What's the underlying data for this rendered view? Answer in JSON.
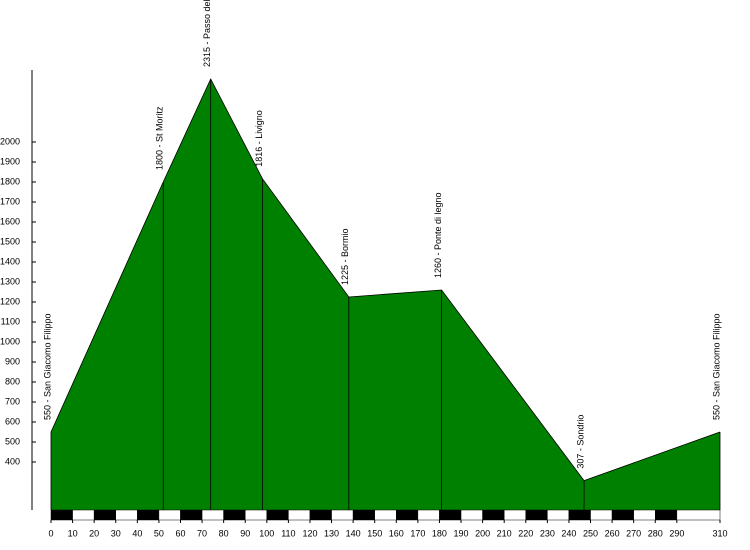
{
  "chart_data": {
    "type": "area",
    "x": [
      0,
      52,
      74,
      98,
      138,
      181,
      247,
      310
    ],
    "values": [
      550,
      1800,
      2315,
      1816,
      1225,
      1260,
      307,
      550
    ],
    "value_labels": [
      "550 - San Giacomo Filippo",
      "1800 - St Moritz",
      "2315 - Passo del",
      "1816 - Livigno",
      "1225 - Bormio",
      "1260 - Ponte di legno",
      "307 - Sondrio",
      "550 - San Giacomo Filippo"
    ],
    "color": "#008000",
    "xlim": [
      0,
      310
    ],
    "xticks": [
      0,
      10,
      20,
      30,
      40,
      50,
      60,
      70,
      80,
      90,
      100,
      110,
      120,
      130,
      140,
      150,
      160,
      170,
      180,
      190,
      200,
      210,
      220,
      230,
      240,
      250,
      260,
      270,
      280,
      290,
      310
    ],
    "ylim": [
      160,
      2360
    ],
    "yticks": [
      400,
      500,
      600,
      700,
      800,
      900,
      1000,
      1100,
      1200,
      1300,
      1400,
      1500,
      1600,
      1700,
      1800,
      1900,
      2000
    ]
  }
}
